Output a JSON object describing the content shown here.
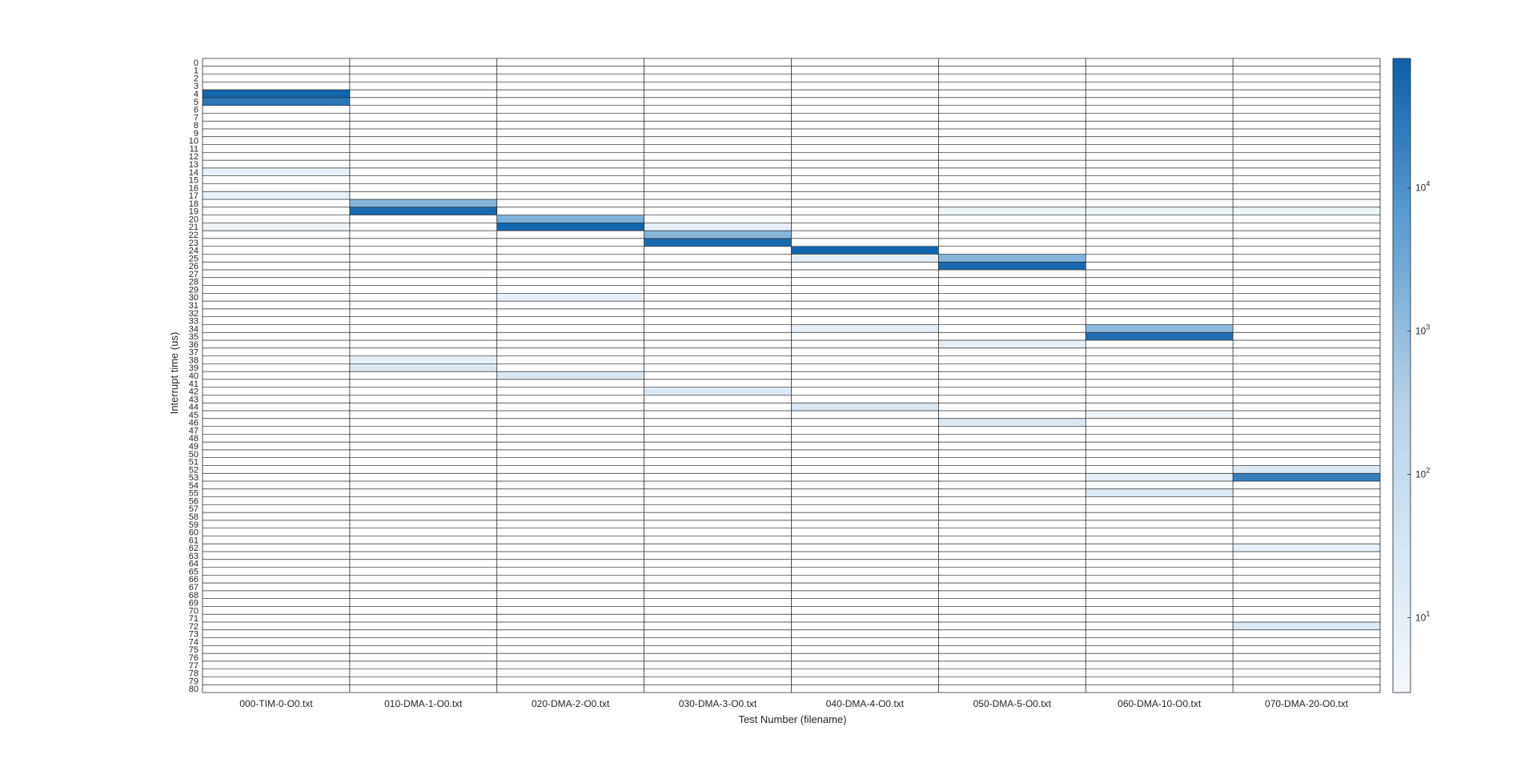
{
  "chart_data": {
    "type": "heatmap",
    "title": "",
    "xlabel": "Test Number (filename)",
    "ylabel": "Interrupt time (us)",
    "categories": [
      "000-TIM-0-O0.txt",
      "010-DMA-1-O0.txt",
      "020-DMA-2-O0.txt",
      "030-DMA-3-O0.txt",
      "040-DMA-4-O0.txt",
      "050-DMA-5-O0.txt",
      "060-DMA-10-O0.txt",
      "070-DMA-20-O0.txt"
    ],
    "y_rows": [
      0,
      80
    ],
    "y_ticks": [
      "0",
      "1",
      "2",
      "3",
      "4",
      "5",
      "6",
      "7",
      "8",
      "9",
      "10",
      "11",
      "12",
      "13",
      "14",
      "15",
      "16",
      "17",
      "18",
      "19",
      "20",
      "21",
      "22",
      "23",
      "24",
      "25",
      "26",
      "27",
      "28",
      "29",
      "30",
      "31",
      "32",
      "33",
      "34",
      "35",
      "36",
      "37",
      "38",
      "39",
      "40",
      "41",
      "42",
      "43",
      "44",
      "45",
      "46",
      "47",
      "48",
      "49",
      "50",
      "51",
      "52",
      "53",
      "54",
      "55",
      "56",
      "57",
      "58",
      "59",
      "60",
      "61",
      "62",
      "63",
      "64",
      "65",
      "66",
      "67",
      "68",
      "69",
      "70",
      "71",
      "72",
      "73",
      "74",
      "75",
      "76",
      "77",
      "78",
      "79",
      "80"
    ],
    "colorbar": {
      "scale": "log",
      "range": [
        3,
        80000
      ],
      "ticks": [
        {
          "value": 10,
          "base": "10",
          "exp": "1"
        },
        {
          "value": 100,
          "base": "10",
          "exp": "2"
        },
        {
          "value": 1000,
          "base": "10",
          "exp": "3"
        },
        {
          "value": 10000,
          "base": "10",
          "exp": "4"
        }
      ],
      "color_low": "#f4f8fc",
      "color_high": "#0b5fa8"
    },
    "background_color": "#ffffff",
    "cells": [
      {
        "col": 0,
        "row": 4,
        "value": 60000
      },
      {
        "col": 0,
        "row": 5,
        "value": 30000
      },
      {
        "col": 0,
        "row": 14,
        "value": 8
      },
      {
        "col": 0,
        "row": 17,
        "value": 8
      },
      {
        "col": 0,
        "row": 21,
        "value": 5
      },
      {
        "col": 1,
        "row": 18,
        "value": 1500
      },
      {
        "col": 1,
        "row": 19,
        "value": 50000
      },
      {
        "col": 1,
        "row": 38,
        "value": 8
      },
      {
        "col": 1,
        "row": 39,
        "value": 20
      },
      {
        "col": 2,
        "row": 20,
        "value": 2000
      },
      {
        "col": 2,
        "row": 21,
        "value": 60000
      },
      {
        "col": 2,
        "row": 30,
        "value": 8
      },
      {
        "col": 2,
        "row": 40,
        "value": 20
      },
      {
        "col": 3,
        "row": 21,
        "value": 8
      },
      {
        "col": 3,
        "row": 22,
        "value": 1500
      },
      {
        "col": 3,
        "row": 23,
        "value": 50000
      },
      {
        "col": 3,
        "row": 42,
        "value": 20
      },
      {
        "col": 4,
        "row": 24,
        "value": 60000
      },
      {
        "col": 4,
        "row": 25,
        "value": 8
      },
      {
        "col": 4,
        "row": 34,
        "value": 8
      },
      {
        "col": 4,
        "row": 44,
        "value": 20
      },
      {
        "col": 5,
        "row": 19,
        "value": 5
      },
      {
        "col": 5,
        "row": 25,
        "value": 1500
      },
      {
        "col": 5,
        "row": 26,
        "value": 50000
      },
      {
        "col": 5,
        "row": 36,
        "value": 8
      },
      {
        "col": 5,
        "row": 46,
        "value": 20
      },
      {
        "col": 6,
        "row": 19,
        "value": 5
      },
      {
        "col": 6,
        "row": 34,
        "value": 1200
      },
      {
        "col": 6,
        "row": 35,
        "value": 40000
      },
      {
        "col": 6,
        "row": 45,
        "value": 5
      },
      {
        "col": 6,
        "row": 53,
        "value": 8
      },
      {
        "col": 6,
        "row": 55,
        "value": 20
      },
      {
        "col": 7,
        "row": 19,
        "value": 5
      },
      {
        "col": 7,
        "row": 52,
        "value": 20
      },
      {
        "col": 7,
        "row": 53,
        "value": 20000
      },
      {
        "col": 7,
        "row": 62,
        "value": 8
      },
      {
        "col": 7,
        "row": 72,
        "value": 20
      }
    ]
  }
}
